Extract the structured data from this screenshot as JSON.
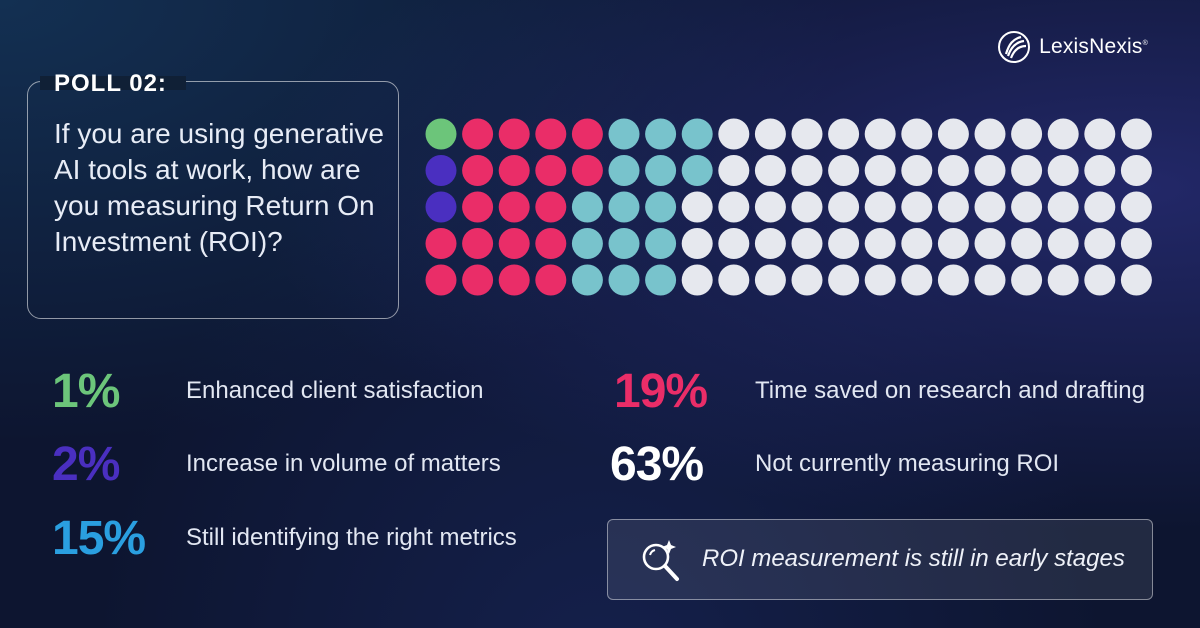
{
  "brand": {
    "name": "LexisNexis",
    "mark": "®"
  },
  "poll": {
    "label": "POLL 02:",
    "question": "If you are using generative AI tools at work, how are you measuring Return On Investment (ROI)?"
  },
  "chart_data": {
    "type": "waffle",
    "rows": 5,
    "columns": 20,
    "categories": [
      {
        "percent": "1%",
        "value": 1,
        "label": "Enhanced client satisfaction",
        "color": "#6cc57a"
      },
      {
        "percent": "2%",
        "value": 2,
        "label": "Increase in volume of matters",
        "color": "#4a2fc0"
      },
      {
        "percent": "19%",
        "value": 19,
        "label": "Time saved on research and drafting",
        "color": "#ea2d68"
      },
      {
        "percent": "15%",
        "value": 15,
        "label": "Still identifying the right metrics",
        "color": "#78c3cc"
      },
      {
        "percent": "63%",
        "value": 63,
        "label": "Not currently measuring ROI",
        "color": "#e6e8ee"
      }
    ],
    "label_colors": [
      "#6cc57a",
      "#4a2fc0",
      "#ea2d68",
      "#2a9fe0",
      "#ffffff"
    ],
    "column_fill_order": "left-to-right, top-to-bottom within each column"
  },
  "callout": {
    "text": "ROI measurement is still in early stages",
    "icon": "magnifier-sparkle-icon"
  }
}
